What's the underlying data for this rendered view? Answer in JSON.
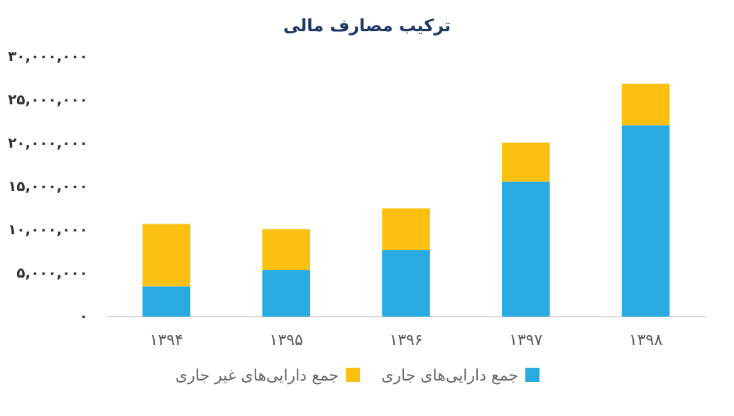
{
  "chart_data": {
    "type": "bar",
    "title": "ترکیب مصارف مالی",
    "stacked": true,
    "legend": "bottom",
    "grid": false,
    "categories": [
      "۱۳۹۴",
      "۱۳۹۵",
      "۱۳۹۶",
      "۱۳۹۷",
      "۱۳۹۸"
    ],
    "series": [
      {
        "name": "جمع دارایی‌های جاری",
        "color": "#29abe2",
        "values": [
          3500000,
          5400000,
          7700000,
          15600000,
          22100000
        ]
      },
      {
        "name": "جمع دارایی‌های غیر جاری",
        "color": "#fcc010",
        "values": [
          7200000,
          4700000,
          4800000,
          4500000,
          4800000
        ]
      }
    ],
    "ylim": [
      0,
      30000000
    ],
    "yticks": [
      {
        "value": 0,
        "label": "۰"
      },
      {
        "value": 5000000,
        "label": "۵,۰۰۰,۰۰۰"
      },
      {
        "value": 10000000,
        "label": "۱۰,۰۰۰,۰۰۰"
      },
      {
        "value": 15000000,
        "label": "۱۵,۰۰۰,۰۰۰"
      },
      {
        "value": 20000000,
        "label": "۲۰,۰۰۰,۰۰۰"
      },
      {
        "value": 25000000,
        "label": "۲۵,۰۰۰,۰۰۰"
      },
      {
        "value": 30000000,
        "label": "۳۰,۰۰۰,۰۰۰"
      }
    ]
  }
}
